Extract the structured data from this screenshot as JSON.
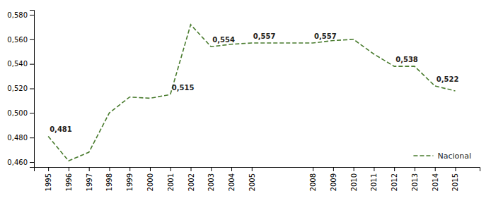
{
  "chart_data": {
    "type": "line",
    "x": [
      1995,
      1996,
      1997,
      1998,
      1999,
      2000,
      2001,
      2002,
      2003,
      2004,
      2005,
      2008,
      2009,
      2010,
      2011,
      2012,
      2013,
      2014,
      2015
    ],
    "series": [
      {
        "name": "Nacional",
        "color": "#4a7c2f",
        "line_style": "dashed",
        "values": [
          0.481,
          0.461,
          0.468,
          0.5,
          0.513,
          0.512,
          0.515,
          0.572,
          0.554,
          0.556,
          0.557,
          0.557,
          0.559,
          0.56,
          0.548,
          0.538,
          0.538,
          0.522,
          0.518
        ]
      }
    ],
    "annotations": [
      {
        "x": 1995,
        "text": "0,481"
      },
      {
        "x": 2001,
        "text": "0,515"
      },
      {
        "x": 2003,
        "text": "0,554"
      },
      {
        "x": 2005,
        "text": "0,557"
      },
      {
        "x": 2008,
        "text": "0,557"
      },
      {
        "x": 2012,
        "text": "0,538"
      },
      {
        "x": 2014,
        "text": "0,522"
      }
    ],
    "xlim": [
      1994.3,
      2016.2
    ],
    "xticks": [
      1995,
      1996,
      1997,
      1998,
      1999,
      2000,
      2001,
      2002,
      2003,
      2004,
      2005,
      2008,
      2009,
      2010,
      2011,
      2012,
      2013,
      2014,
      2015
    ],
    "ylim": [
      0.456,
      0.584
    ],
    "yticks": [
      {
        "value": 0.46,
        "label": "0,460"
      },
      {
        "value": 0.48,
        "label": "0,480"
      },
      {
        "value": 0.5,
        "label": "0,500"
      },
      {
        "value": 0.52,
        "label": "0,520"
      },
      {
        "value": 0.54,
        "label": "0,540"
      },
      {
        "value": 0.56,
        "label": "0,560"
      },
      {
        "value": 0.58,
        "label": "0,580"
      }
    ],
    "grid": false,
    "legend": "lower right"
  }
}
